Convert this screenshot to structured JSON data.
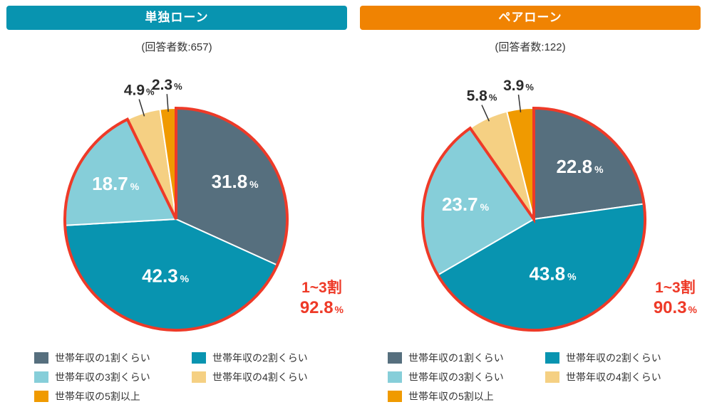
{
  "panels": [
    {
      "id": "single-loan",
      "header_label": "単独ローン",
      "header_color": "#0894b0",
      "respondents_label": "(回答者数:657)"
    },
    {
      "id": "pair-loan",
      "header_label": "ペアローン",
      "header_color": "#f08302",
      "respondents_label": "(回答者数:122)"
    }
  ],
  "chart_data": [
    {
      "type": "pie",
      "title": "単独ローン",
      "respondents": 657,
      "categories": [
        "世帯年収の1割くらい",
        "世帯年収の2割くらい",
        "世帯年収の3割くらい",
        "世帯年収の4割くらい",
        "世帯年収の5割以上"
      ],
      "values": [
        31.8,
        42.3,
        18.7,
        4.9,
        2.3
      ],
      "colors": [
        "#566f7e",
        "#0894b0",
        "#86ced9",
        "#f5d083",
        "#f09a00"
      ],
      "start_angle_deg": 0,
      "direction": "clockwise",
      "label_unit": "%",
      "inside_label_min_pct": 10,
      "highlight_group": {
        "label": "1~3割",
        "value": 92.8,
        "unit": "%",
        "covers_first_n_slices": 3,
        "outline_color": "#ee3a28"
      }
    },
    {
      "type": "pie",
      "title": "ペアローン",
      "respondents": 122,
      "categories": [
        "世帯年収の1割くらい",
        "世帯年収の2割くらい",
        "世帯年収の3割くらい",
        "世帯年収の4割くらい",
        "世帯年収の5割以上"
      ],
      "values": [
        22.8,
        43.8,
        23.7,
        5.8,
        3.9
      ],
      "colors": [
        "#566f7e",
        "#0894b0",
        "#86ced9",
        "#f5d083",
        "#f09a00"
      ],
      "start_angle_deg": 0,
      "direction": "clockwise",
      "label_unit": "%",
      "inside_label_min_pct": 10,
      "highlight_group": {
        "label": "1~3割",
        "value": 90.3,
        "unit": "%",
        "covers_first_n_slices": 3,
        "outline_color": "#ee3a28"
      }
    }
  ],
  "legend_items": [
    {
      "label": "世帯年収の1割くらい",
      "color": "#566f7e"
    },
    {
      "label": "世帯年収の2割くらい",
      "color": "#0894b0"
    },
    {
      "label": "世帯年収の3割くらい",
      "color": "#86ced9"
    },
    {
      "label": "世帯年収の4割くらい",
      "color": "#f5d083"
    },
    {
      "label": "世帯年収の5割以上",
      "color": "#f09a00"
    }
  ],
  "style_colors": {
    "highlight_red": "#ee3a28",
    "header_teal": "#0894b0",
    "header_orange": "#f08302",
    "text_dark": "#333333"
  }
}
